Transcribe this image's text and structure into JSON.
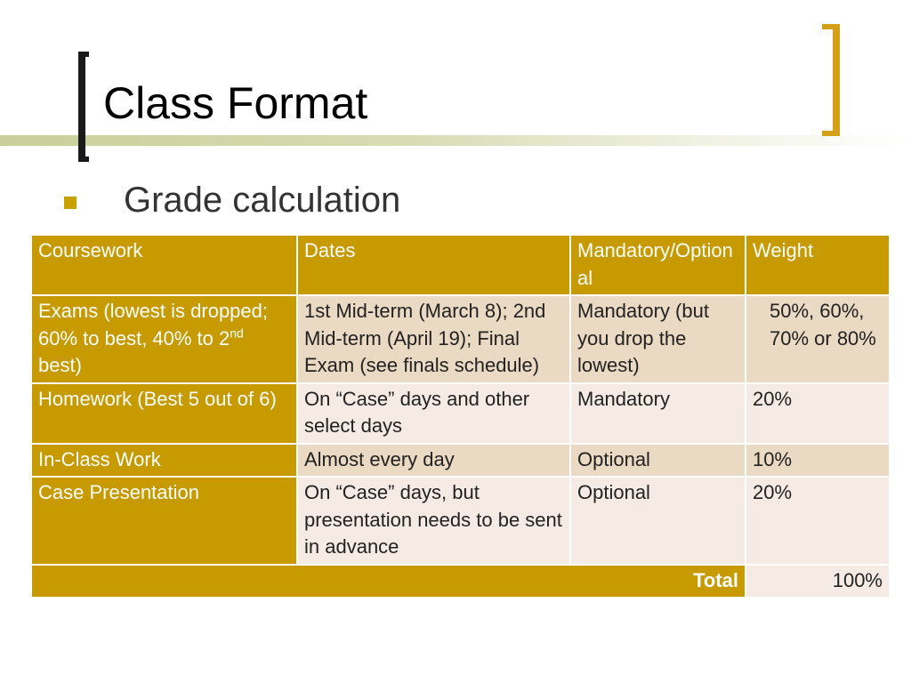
{
  "slide": {
    "title": "Class Format",
    "bullet": "Grade calculation"
  },
  "table": {
    "headers": [
      "Coursework",
      "Dates",
      "Mandatory/Optional",
      "Weight"
    ],
    "rows": [
      {
        "coursework_main": "Exams (lowest is dropped; 60% to best, 40% to 2",
        "coursework_sup": "nd",
        "coursework_tail": " best)",
        "dates": "1st Mid-term (March 8); 2nd Mid-term (April 19); Final Exam (see finals schedule)",
        "mandatory": "Mandatory (but you drop the lowest)",
        "weight": "50%, 60%, 70% or 80%"
      },
      {
        "coursework": "Homework (Best 5 out of 6)",
        "dates": "On “Case” days and other select days",
        "mandatory": "Mandatory",
        "weight": "20%"
      },
      {
        "coursework": "In-Class Work",
        "dates": "Almost every day",
        "mandatory": "Optional",
        "weight": "10%"
      },
      {
        "coursework": "Case Presentation",
        "dates": "On “Case” days, but presentation needs to be sent in advance",
        "mandatory": "Optional",
        "weight": "20%"
      }
    ],
    "total_label": "Total",
    "total_value": "100%"
  },
  "colors": {
    "header_gold": "#c79a00",
    "row_dark": "#ead9c3",
    "row_light": "#f5ebe4",
    "bracket_right": "#d4a017"
  }
}
